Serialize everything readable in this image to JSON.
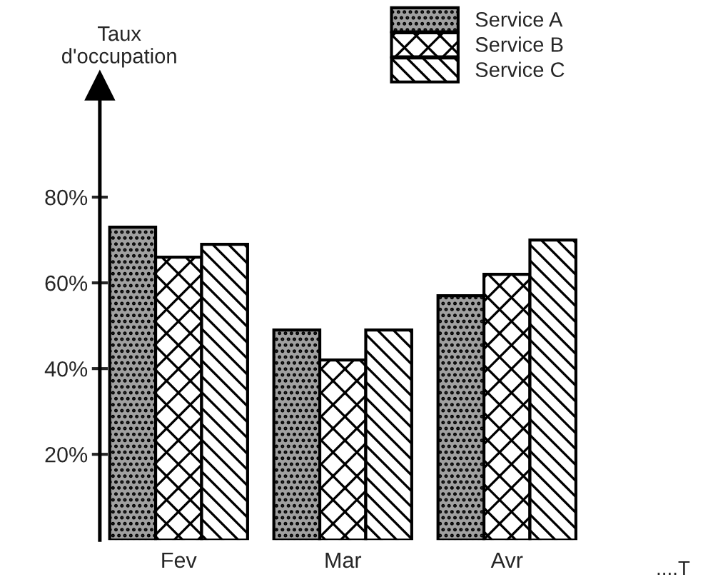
{
  "chart_data": {
    "type": "bar",
    "ylabel": "Taux\nd'occupation",
    "xlabel": "....T",
    "categories": [
      "Fev",
      "Mar",
      "Avr"
    ],
    "series": [
      {
        "name": "Service A",
        "color": "#000000",
        "values": [
          73,
          49,
          57
        ]
      },
      {
        "name": "Service B",
        "color": "#000000",
        "values": [
          66,
          42,
          62
        ]
      },
      {
        "name": "Service C",
        "color": "#000000",
        "values": [
          69,
          49,
          70
        ]
      }
    ],
    "ylim": [
      0,
      106
    ],
    "yticks": [
      {
        "value": 20,
        "label": "20%"
      },
      {
        "value": 40,
        "label": "40%"
      },
      {
        "value": 60,
        "label": "60%"
      },
      {
        "value": 80,
        "label": "80%"
      }
    ],
    "legend": "top"
  }
}
